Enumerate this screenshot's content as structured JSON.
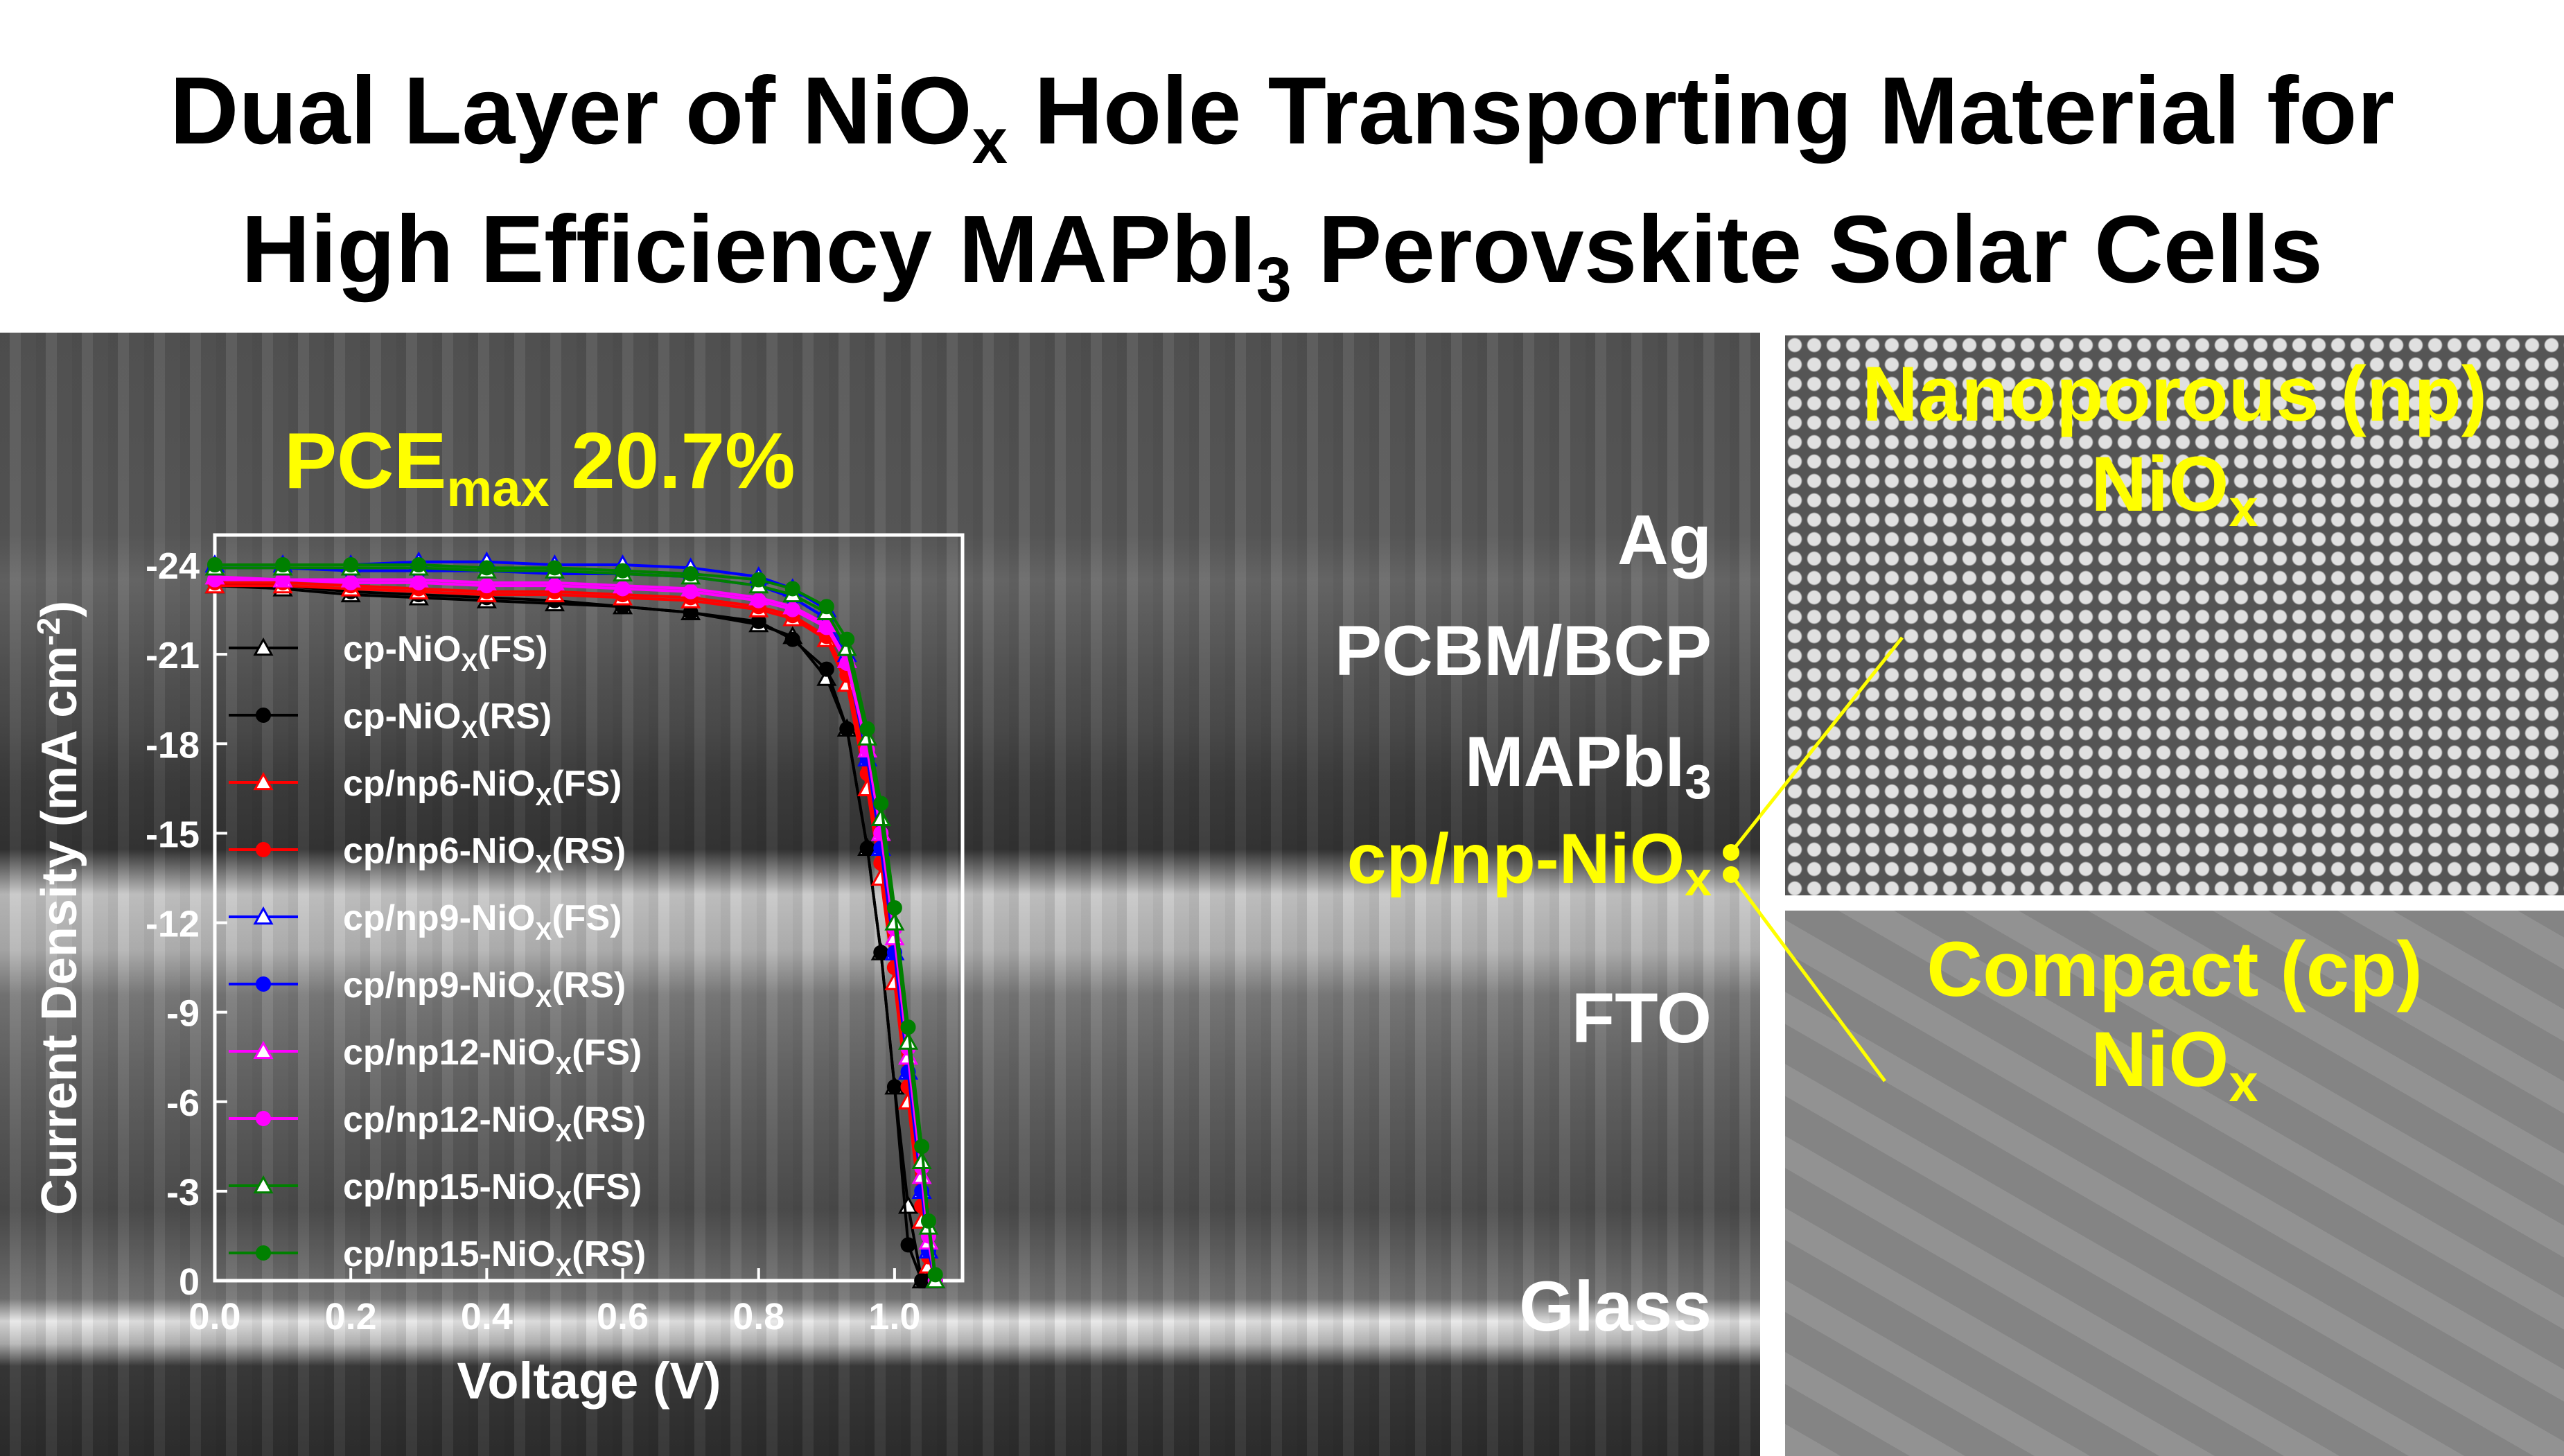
{
  "title": {
    "line1_pre": "Dual Layer of NiO",
    "line1_sub": "x",
    "line1_post": " Hole Transporting Material for",
    "line2_pre": "High Efficiency MAPbI",
    "line2_sub": "3",
    "line2_post": " Perovskite Solar Cells"
  },
  "pce": {
    "pre": "PCE",
    "sub": "max",
    "post": " 20.7%"
  },
  "layers": {
    "ag": "Ag",
    "pcbm": "PCBM/BCP",
    "mapbi_pre": "MAPbI",
    "mapbi_sub": "3",
    "np_pre": "cp/np-NiO",
    "np_sub": "x",
    "fto": "FTO",
    "glass": "Glass"
  },
  "panels": {
    "np_line1": "Nanoporous (np)",
    "np_line2_pre": "NiO",
    "np_line2_sub": "x",
    "cp_line1": "Compact (cp)",
    "cp_line2_pre": "NiO",
    "cp_line2_sub": "x"
  },
  "colors": {
    "highlight": "#ffff00",
    "black": "#000000",
    "red": "#ff0000",
    "blue": "#0000ff",
    "magenta": "#ff00ff",
    "green": "#008000"
  },
  "chart_data": {
    "type": "line",
    "xlabel": "Voltage (V)",
    "ylabel_pre": "Current Density (mA cm",
    "ylabel_sup": "-2",
    "ylabel_post": ")",
    "xlim": [
      0.0,
      1.1
    ],
    "ylim": [
      0,
      -25
    ],
    "xticks": [
      0.0,
      0.2,
      0.4,
      0.6,
      0.8,
      1.0
    ],
    "xtick_labels": [
      "0.0",
      "0.2",
      "0.4",
      "0.6",
      "0.8",
      "1.0"
    ],
    "yticks": [
      0,
      -3,
      -6,
      -9,
      -12,
      -15,
      -18,
      -21,
      -24
    ],
    "ytick_labels": [
      "0",
      "-3",
      "-6",
      "-9",
      "-12",
      "-15",
      "-18",
      "-21",
      "-24"
    ],
    "legend_placement": "left",
    "x": [
      0.0,
      0.1,
      0.2,
      0.3,
      0.4,
      0.5,
      0.6,
      0.7,
      0.8,
      0.85,
      0.9,
      0.93,
      0.96,
      0.98,
      1.0,
      1.02,
      1.04,
      1.05,
      1.06
    ],
    "series": [
      {
        "name_pre": "cp-NiO",
        "name_sub": "X",
        "name_post": "(FS)",
        "color": "#000000",
        "marker": "triangle-open",
        "values": [
          -23.3,
          -23.2,
          -23.0,
          -22.9,
          -22.8,
          -22.7,
          -22.6,
          -22.4,
          -22.0,
          -21.6,
          -20.2,
          -18.5,
          -14.5,
          -11.0,
          -6.5,
          -2.5,
          0,
          0,
          0
        ]
      },
      {
        "name_pre": "cp-NiO",
        "name_sub": "X",
        "name_post": "(RS)",
        "color": "#000000",
        "marker": "circle-filled",
        "values": [
          -23.4,
          -23.3,
          -23.1,
          -23.0,
          -22.9,
          -22.8,
          -22.6,
          -22.4,
          -22.1,
          -21.5,
          -20.5,
          -18.5,
          -14.5,
          -11.0,
          -6.5,
          -1.2,
          0,
          0,
          0
        ]
      },
      {
        "name_pre": "cp/np6-NiO",
        "name_sub": "X",
        "name_post": "(FS)",
        "color": "#ff0000",
        "marker": "triangle-open",
        "values": [
          -23.3,
          -23.3,
          -23.2,
          -23.1,
          -23.0,
          -23.0,
          -22.9,
          -22.8,
          -22.5,
          -22.2,
          -21.5,
          -20.0,
          -16.5,
          -13.5,
          -10.0,
          -6.0,
          -2.0,
          -0.5,
          0
        ]
      },
      {
        "name_pre": "cp/np6-NiO",
        "name_sub": "X",
        "name_post": "(RS)",
        "color": "#ff0000",
        "marker": "circle-filled",
        "values": [
          -23.4,
          -23.4,
          -23.3,
          -23.2,
          -23.1,
          -23.1,
          -23.0,
          -22.9,
          -22.6,
          -22.3,
          -21.6,
          -20.3,
          -17.0,
          -14.0,
          -10.5,
          -6.5,
          -2.5,
          -0.8,
          0
        ]
      },
      {
        "name_pre": "cp/np9-NiO",
        "name_sub": "X",
        "name_post": "(FS)",
        "color": "#0000ff",
        "marker": "triangle-open",
        "values": [
          -24.0,
          -24.0,
          -24.0,
          -24.1,
          -24.1,
          -24.0,
          -24.0,
          -23.9,
          -23.6,
          -23.2,
          -22.5,
          -21.0,
          -17.5,
          -14.5,
          -11.0,
          -7.0,
          -3.0,
          -1.0,
          0
        ]
      },
      {
        "name_pre": "cp/np9-NiO",
        "name_sub": "X",
        "name_post": "(RS)",
        "color": "#0000ff",
        "marker": "circle-filled",
        "values": [
          -23.9,
          -23.9,
          -23.8,
          -23.8,
          -23.8,
          -23.7,
          -23.7,
          -23.6,
          -23.3,
          -22.9,
          -22.2,
          -20.8,
          -17.5,
          -14.5,
          -11.0,
          -7.0,
          -3.0,
          -1.0,
          0
        ]
      },
      {
        "name_pre": "cp/np12-NiO",
        "name_sub": "X",
        "name_post": "(FS)",
        "color": "#ff00ff",
        "marker": "triangle-open",
        "values": [
          -23.6,
          -23.5,
          -23.5,
          -23.5,
          -23.4,
          -23.4,
          -23.3,
          -23.2,
          -22.9,
          -22.6,
          -22.0,
          -20.8,
          -17.8,
          -15.0,
          -11.5,
          -7.5,
          -3.5,
          -1.3,
          0
        ]
      },
      {
        "name_pre": "cp/np12-NiO",
        "name_sub": "X",
        "name_post": "(RS)",
        "color": "#ff00ff",
        "marker": "circle-filled",
        "values": [
          -23.5,
          -23.5,
          -23.4,
          -23.4,
          -23.3,
          -23.3,
          -23.2,
          -23.1,
          -22.8,
          -22.5,
          -21.9,
          -20.7,
          -17.8,
          -15.0,
          -11.8,
          -7.8,
          -3.8,
          -1.5,
          0
        ]
      },
      {
        "name_pre": "cp/np15-NiO",
        "name_sub": "X",
        "name_post": "(FS)",
        "color": "#008000",
        "marker": "triangle-open",
        "values": [
          -23.9,
          -23.9,
          -23.9,
          -23.9,
          -23.8,
          -23.8,
          -23.7,
          -23.6,
          -23.3,
          -23.0,
          -22.4,
          -21.2,
          -18.2,
          -15.5,
          -12.0,
          -8.0,
          -4.0,
          -1.8,
          0
        ]
      },
      {
        "name_pre": "cp/np15-NiO",
        "name_sub": "X",
        "name_post": "(RS)",
        "color": "#008000",
        "marker": "circle-filled",
        "values": [
          -24.0,
          -24.0,
          -24.0,
          -24.0,
          -23.9,
          -23.9,
          -23.8,
          -23.7,
          -23.5,
          -23.2,
          -22.6,
          -21.5,
          -18.5,
          -16.0,
          -12.5,
          -8.5,
          -4.5,
          -2.0,
          -0.2
        ]
      }
    ]
  }
}
